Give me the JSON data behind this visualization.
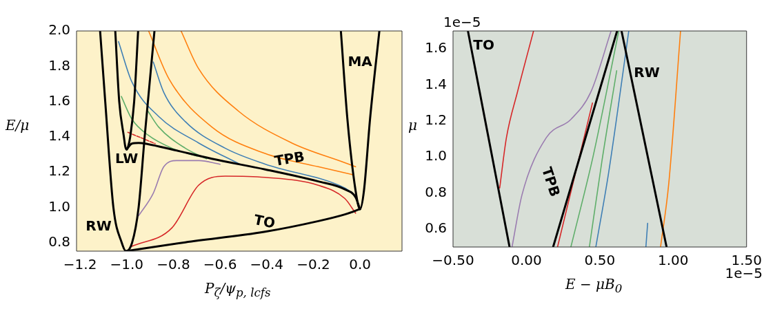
{
  "chart_data": [
    {
      "type": "line",
      "xlabel": "P$_{ζ}$/ψ$_{p, lcfs}$",
      "ylabel": "E/μ",
      "xlim": [
        -1.215,
        0.18
      ],
      "ylim": [
        0.753,
        2.0
      ],
      "xticks": [
        {
          "value": -1.2,
          "label": "−1.2"
        },
        {
          "value": -1.0,
          "label": "−1.0"
        },
        {
          "value": -0.8,
          "label": "−0.8"
        },
        {
          "value": -0.6,
          "label": "−0.6"
        },
        {
          "value": -0.4,
          "label": "−0.4"
        },
        {
          "value": -0.2,
          "label": "−0.2"
        },
        {
          "value": 0.0,
          "label": "0.0"
        }
      ],
      "yticks": [
        {
          "value": 0.8,
          "label": "0.8"
        },
        {
          "value": 1.0,
          "label": "1.0"
        },
        {
          "value": 1.2,
          "label": "1.2"
        },
        {
          "value": 1.4,
          "label": "1.4"
        },
        {
          "value": 1.6,
          "label": "1.6"
        },
        {
          "value": 1.8,
          "label": "1.8"
        },
        {
          "value": 2.0,
          "label": "2.0"
        }
      ],
      "grid": false,
      "legend": false,
      "marker": "none",
      "annotations": [
        "MA",
        "LW",
        "RW",
        "TPB",
        "TO"
      ],
      "series": [
        {
          "type": "line",
          "color": "#000000",
          "x": [
            -1.114,
            -1.092,
            -1.057,
            -1.021,
            -1.003,
            -0.977,
            -0.949,
            -0.923,
            -0.881
          ],
          "values": [
            2.0,
            1.6,
            1.0,
            0.8,
            0.753,
            0.8,
            1.0,
            1.4,
            2.0
          ]
        },
        {
          "type": "line",
          "color": "#000000",
          "x": [
            -1.049,
            -1.032,
            -1.012,
            -1.006,
            -1.0,
            -0.994,
            -0.985,
            -0.968,
            -0.951
          ],
          "values": [
            2.0,
            1.6,
            1.4,
            1.345,
            1.329,
            1.345,
            1.4,
            1.6,
            2.0
          ]
        },
        {
          "type": "line",
          "color": "#000000",
          "x": [
            -1.0,
            -0.978,
            -0.949,
            -0.909,
            -0.806,
            -0.635,
            -0.407,
            -0.179,
            -0.065,
            -0.019,
            0.0
          ],
          "values": [
            1.329,
            1.362,
            1.366,
            1.359,
            1.329,
            1.276,
            1.216,
            1.148,
            1.103,
            1.058,
            0.991
          ]
        },
        {
          "type": "line",
          "color": "#000000",
          "x": [
            -1.003,
            -0.749,
            -0.407,
            -0.179,
            -0.065,
            0.0
          ],
          "values": [
            0.753,
            0.803,
            0.863,
            0.923,
            0.961,
            0.991
          ]
        },
        {
          "type": "line",
          "color": "#000000",
          "x": [
            -0.082,
            -0.054,
            -0.019,
            0.0,
            0.017,
            0.043,
            0.083
          ],
          "values": [
            2.0,
            1.501,
            1.096,
            0.991,
            1.096,
            1.501,
            2.0
          ]
        },
        {
          "type": "line",
          "color": "#ff7f0e",
          "x": [
            -0.906,
            -0.818,
            -0.635,
            -0.407,
            -0.179,
            -0.031
          ],
          "values": [
            2.0,
            1.727,
            1.456,
            1.306,
            1.231,
            1.186
          ]
        },
        {
          "type": "line",
          "color": "#ff7f0e",
          "x": [
            -0.767,
            -0.692,
            -0.521,
            -0.293,
            -0.065,
            -0.019
          ],
          "values": [
            2.0,
            1.787,
            1.546,
            1.366,
            1.254,
            1.231
          ]
        },
        {
          "type": "line",
          "color": "#3f7fb5",
          "x": [
            -1.035,
            -0.978,
            -0.863,
            -0.692,
            -0.516
          ],
          "values": [
            1.94,
            1.712,
            1.516,
            1.366,
            1.246
          ]
        },
        {
          "type": "line",
          "color": "#3f7fb5",
          "x": [
            -0.886,
            -0.841,
            -0.749,
            -0.578,
            -0.407,
            -0.065,
            -0.031
          ],
          "values": [
            1.824,
            1.652,
            1.487,
            1.336,
            1.246,
            1.111,
            1.081
          ]
        },
        {
          "type": "line",
          "color": "#5fae6a",
          "x": [
            -1.023,
            -0.978,
            -0.909,
            -0.806,
            -0.698
          ],
          "values": [
            1.629,
            1.501,
            1.411,
            1.336,
            1.291
          ]
        },
        {
          "type": "line",
          "color": "#5fae6a",
          "x": [
            -0.909,
            -0.863,
            -0.749,
            -0.658
          ],
          "values": [
            1.546,
            1.456,
            1.336,
            1.276
          ]
        },
        {
          "type": "line",
          "color": "#9a7cb0",
          "x": [
            -0.949,
            -0.886,
            -0.841,
            -0.784,
            -0.69,
            -0.6
          ],
          "values": [
            0.953,
            1.081,
            1.231,
            1.266,
            1.266,
            1.245
          ]
        },
        {
          "type": "line",
          "color": "#d62728",
          "x": [
            -0.978,
            -0.806,
            -0.692,
            -0.578,
            -0.407,
            -0.179,
            -0.065,
            -0.019
          ],
          "values": [
            0.78,
            0.885,
            1.126,
            1.178,
            1.171,
            1.126,
            1.051,
            0.968
          ]
        },
        {
          "type": "line",
          "color": "#d62728",
          "line_style": "dashed",
          "x": [
            -0.995,
            -0.878
          ],
          "values": [
            1.426,
            1.362
          ]
        }
      ]
    },
    {
      "type": "line",
      "xlabel": "E − μB$_{0}$",
      "ylabel": "μ",
      "xlim": [
        -0.5,
        1.5
      ],
      "ylim": [
        0.5,
        1.7
      ],
      "xticks": [
        {
          "value": -0.5,
          "label": "−0.50"
        },
        {
          "value": 0.0,
          "label": "0.00"
        },
        {
          "value": 0.5,
          "label": "0.50"
        },
        {
          "value": 1.0,
          "label": "1.00"
        },
        {
          "value": 1.5,
          "label": "1.50"
        }
      ],
      "yticks": [
        {
          "value": 0.6,
          "label": "0.6"
        },
        {
          "value": 0.8,
          "label": "0.8"
        },
        {
          "value": 1.0,
          "label": "1.0"
        },
        {
          "value": 1.2,
          "label": "1.2"
        },
        {
          "value": 1.4,
          "label": "1.4"
        },
        {
          "value": 1.6,
          "label": "1.6"
        }
      ],
      "grid": false,
      "legend": false,
      "marker": "none",
      "annotations": [
        "1e−5",
        "1e−5",
        "TO",
        "TPB",
        "RW"
      ],
      "series": [
        {
          "type": "line",
          "color": "#000000",
          "x": [
            -0.398,
            -0.115
          ],
          "values": [
            1.698,
            0.501
          ]
        },
        {
          "type": "line",
          "color": "#000000",
          "x": [
            0.182,
            0.618
          ],
          "values": [
            0.5,
            1.7
          ]
        },
        {
          "type": "line",
          "color": "#000000",
          "x": [
            0.648,
            0.955
          ],
          "values": [
            1.7,
            0.5
          ]
        },
        {
          "type": "line",
          "color": "#d62728",
          "x": [
            -0.182,
            -0.136,
            -0.061,
            0.048
          ],
          "values": [
            0.828,
            1.108,
            1.361,
            1.698
          ]
        },
        {
          "type": "line",
          "color": "#d62728",
          "x": [
            0.212,
            0.45
          ],
          "values": [
            0.5,
            1.3
          ]
        },
        {
          "type": "line",
          "color": "#9a7cb0",
          "x": [
            -0.098,
            -0.03,
            0.136,
            0.303,
            0.439,
            0.576
          ],
          "values": [
            0.5,
            0.79,
            1.108,
            1.209,
            1.361,
            1.698
          ]
        },
        {
          "type": "line",
          "color": "#5fae6a",
          "x": [
            0.303,
            0.455,
            0.629
          ],
          "values": [
            0.5,
            1.006,
            1.698
          ]
        },
        {
          "type": "line",
          "color": "#5fae6a",
          "x": [
            0.429,
            0.515,
            0.615
          ],
          "values": [
            0.5,
            0.98,
            1.479
          ]
        },
        {
          "type": "line",
          "color": "#3f7fb5",
          "x": [
            0.473,
            0.561,
            0.697
          ],
          "values": [
            0.5,
            0.917,
            1.698
          ]
        },
        {
          "type": "line",
          "color": "#3f7fb5",
          "x": [
            0.814,
            0.826
          ],
          "values": [
            0.5,
            0.632
          ]
        },
        {
          "type": "line",
          "color": "#ff7f0e",
          "x": [
            0.914,
            0.97,
            1.05
          ],
          "values": [
            0.5,
            0.854,
            1.698
          ]
        }
      ]
    }
  ]
}
